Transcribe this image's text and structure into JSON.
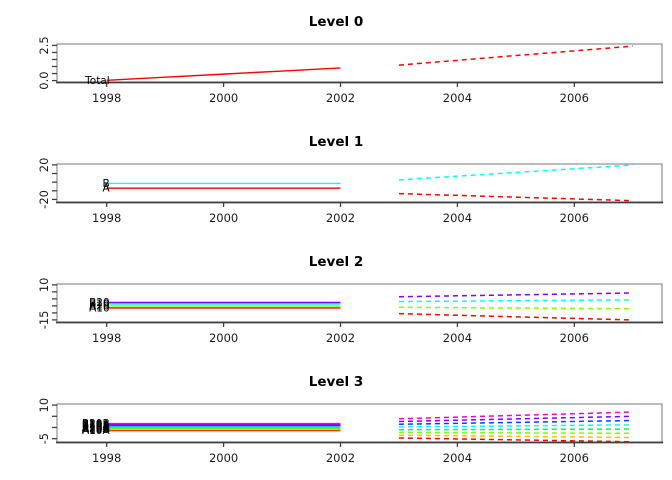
{
  "figure": {
    "background": "#ffffff",
    "history_style": "solid",
    "forecast_style": "dashed"
  },
  "chart_data": {
    "type": "line",
    "x_history": [
      1998,
      1999,
      2000,
      2001,
      2002
    ],
    "x_forecast": [
      2003,
      2004,
      2005,
      2006,
      2007
    ],
    "xlim": [
      1997.15,
      2007.5
    ],
    "xticks": [
      {
        "value": 1998,
        "label": "1998"
      },
      {
        "value": 2000,
        "label": "2000"
      },
      {
        "value": 2002,
        "label": "2002"
      },
      {
        "value": 2004,
        "label": "2004"
      },
      {
        "value": 2006,
        "label": "2006"
      }
    ],
    "panels": [
      {
        "title": "Level 0",
        "ylim": [
          -0.1,
          2.6
        ],
        "yticks": [
          {
            "value": 0.0,
            "label": "0.0"
          },
          {
            "value": 0.5,
            "label": ""
          },
          {
            "value": 1.0,
            "label": ""
          },
          {
            "value": 1.5,
            "label": ""
          },
          {
            "value": 2.0,
            "label": ""
          },
          {
            "value": 2.5,
            "label": "2.5"
          }
        ],
        "series": [
          {
            "name": "Total",
            "label": "Total",
            "color": "#FF0000",
            "history": [
              0.02,
              0.24,
              0.46,
              0.68,
              0.9
            ],
            "forecast": [
              1.1,
              1.44,
              1.78,
              2.11,
              2.45
            ]
          }
        ]
      },
      {
        "title": "Level 1",
        "ylim": [
          -23,
          21
        ],
        "yticks": [
          {
            "value": -20,
            "label": "-20"
          },
          {
            "value": -10,
            "label": ""
          },
          {
            "value": 0,
            "label": ""
          },
          {
            "value": 10,
            "label": ""
          },
          {
            "value": 20,
            "label": "20"
          }
        ],
        "series": [
          {
            "name": "A",
            "label": "A",
            "color": "#FF0000",
            "history": [
              -7,
              -7,
              -7,
              -7,
              -7
            ],
            "forecast": [
              -13.3,
              -15.35,
              -17.4,
              -19.45,
              -21.5
            ]
          },
          {
            "name": "B",
            "label": "B",
            "color": "#00FFFF",
            "history": [
              -1.5,
              -1.5,
              -1.5,
              -1.5,
              -1.5
            ],
            "forecast": [
              2.6,
              6.9,
              11.2,
              15.5,
              19.8
            ]
          }
        ]
      },
      {
        "title": "Level 2",
        "ylim": [
          -16.5,
          10.6
        ],
        "yticks": [
          {
            "value": -15,
            "label": "-15"
          },
          {
            "value": -10,
            "label": ""
          },
          {
            "value": -5,
            "label": ""
          },
          {
            "value": 0,
            "label": ""
          },
          {
            "value": 5,
            "label": ""
          },
          {
            "value": 10,
            "label": "10"
          }
        ],
        "series": [
          {
            "name": "A10",
            "label": "A10",
            "color": "#FF0000",
            "history": [
              -6.5,
              -6.5,
              -6.5,
              -6.5,
              -6.5
            ],
            "forecast": [
              -10.5,
              -11.65,
              -12.8,
              -13.95,
              -15.1
            ]
          },
          {
            "name": "A20",
            "label": "A20",
            "color": "#80FF00",
            "history": [
              -5.1,
              -5.1,
              -5.1,
              -5.1,
              -5.1
            ],
            "forecast": [
              -6.0,
              -6.28,
              -6.55,
              -6.83,
              -7.1
            ]
          },
          {
            "name": "B10",
            "label": "B10",
            "color": "#00FFFF",
            "history": [
              -3.7,
              -3.7,
              -3.7,
              -3.7,
              -3.7
            ],
            "forecast": [
              -1.9,
              -1.6,
              -1.33,
              -1.05,
              -0.75
            ]
          },
          {
            "name": "B20",
            "label": "B20",
            "color": "#8000FF",
            "history": [
              -2.6,
              -2.6,
              -2.6,
              -2.6,
              -2.6
            ],
            "forecast": [
              1.5,
              2.18,
              2.85,
              3.53,
              4.2
            ]
          }
        ]
      },
      {
        "title": "Level 3",
        "ylim": [
          -6.5,
          10.5
        ],
        "yticks": [
          {
            "value": -5,
            "label": "-5"
          },
          {
            "value": 0,
            "label": ""
          },
          {
            "value": 5,
            "label": ""
          },
          {
            "value": 10,
            "label": "10"
          }
        ],
        "series": [
          {
            "name": "A10A",
            "label": "A10A",
            "color": "#FF0000",
            "history": [
              -1.4,
              -1.4,
              -1.4,
              -1.4,
              -1.4
            ],
            "forecast": [
              -4.7,
              -5.13,
              -5.55,
              -5.98,
              -6.4
            ]
          },
          {
            "name": "A10B",
            "label": "A10B",
            "color": "#FFBF00",
            "history": [
              -0.95,
              -0.95,
              -0.95,
              -0.95,
              -0.95
            ],
            "forecast": [
              -3.47,
              -3.73,
              -3.99,
              -4.24,
              -4.5
            ]
          },
          {
            "name": "A20A",
            "label": "A20A",
            "color": "#80FF00",
            "history": [
              -0.5,
              -0.5,
              -0.5,
              -0.5,
              -0.5
            ],
            "forecast": [
              -2.24,
              -2.33,
              -2.42,
              -2.51,
              -2.6
            ]
          },
          {
            "name": "A20B",
            "label": "A20B",
            "color": "#00FF40",
            "history": [
              -0.05,
              -0.05,
              -0.05,
              -0.05,
              -0.05
            ],
            "forecast": [
              -1.01,
              -0.93,
              -0.85,
              -0.78,
              -0.7
            ]
          },
          {
            "name": "B10A",
            "label": "B10A",
            "color": "#00FFFF",
            "history": [
              0.4,
              0.4,
              0.4,
              0.4,
              0.4
            ],
            "forecast": [
              0.21,
              0.46,
              0.7,
              0.95,
              1.2
            ]
          },
          {
            "name": "B10B",
            "label": "B10B",
            "color": "#0040FF",
            "history": [
              0.85,
              0.85,
              0.85,
              0.85,
              0.85
            ],
            "forecast": [
              1.44,
              1.86,
              2.27,
              2.69,
              3.1
            ]
          },
          {
            "name": "B20A",
            "label": "B20A",
            "color": "#8000FF",
            "history": [
              1.3,
              1.3,
              1.3,
              1.3,
              1.3
            ],
            "forecast": [
              2.67,
              3.25,
              3.83,
              4.42,
              5.0
            ]
          },
          {
            "name": "B20B",
            "label": "B20B",
            "color": "#FF00BF",
            "history": [
              1.75,
              1.75,
              1.75,
              1.75,
              1.75
            ],
            "forecast": [
              3.9,
              4.65,
              5.4,
              6.15,
              6.9
            ]
          }
        ]
      }
    ]
  }
}
